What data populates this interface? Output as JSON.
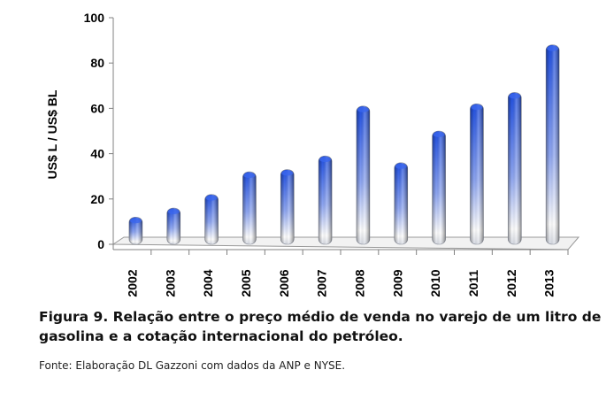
{
  "chart_data": {
    "type": "bar",
    "categories": [
      "2002",
      "2003",
      "2004",
      "2005",
      "2006",
      "2007",
      "2008",
      "2009",
      "2010",
      "2011",
      "2012",
      "2013"
    ],
    "values": [
      12,
      16,
      22,
      32,
      33,
      39,
      61,
      36,
      50,
      62,
      67,
      88
    ],
    "title": "",
    "xlabel": "",
    "ylabel": "US$ L  / US$ BL",
    "ylim": [
      0,
      100
    ],
    "yticks": [
      0,
      20,
      40,
      60,
      80,
      100
    ],
    "grid": false,
    "legend": "none",
    "colors": {
      "bar_top": "#1f4ee0",
      "bar_bottom": "#ffffff",
      "axis": "#808080"
    }
  },
  "caption": "Figura 9. Relação entre o preço médio de venda no varejo de um litro de gasolina e a cotação internacional do petróleo.",
  "source": "Fonte: Elaboração DL Gazzoni com dados da ANP e NYSE."
}
